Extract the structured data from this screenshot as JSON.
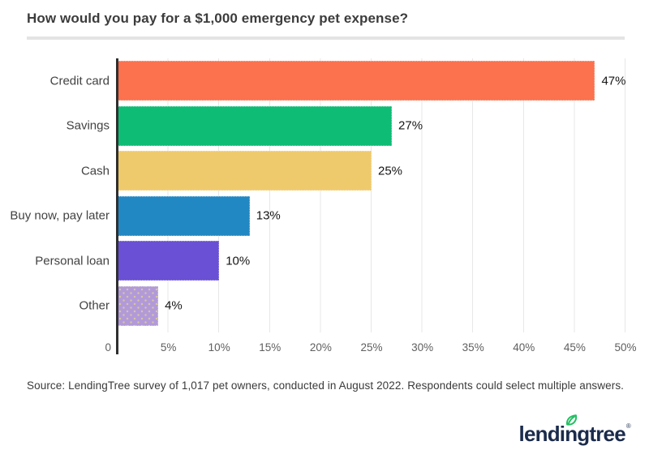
{
  "title": "How would you pay for a $1,000 emergency pet expense?",
  "source_note": "Source: LendingTree survey of 1,017 pet owners, conducted in August 2022. Respondents could select multiple answers.",
  "logo": {
    "text": "lendingtree",
    "registered_mark": "®",
    "text_color": "#1b2b4b",
    "leaf_color": "#21bf61"
  },
  "chart_data": {
    "type": "bar",
    "orientation": "horizontal",
    "title": "How would you pay for a $1,000 emergency pet expense?",
    "categories": [
      "Credit card",
      "Savings",
      "Cash",
      "Buy now, pay later",
      "Personal loan",
      "Other"
    ],
    "values": [
      47,
      27,
      25,
      13,
      10,
      4
    ],
    "value_labels": [
      "47%",
      "27%",
      "25%",
      "13%",
      "10%",
      "4%"
    ],
    "bar_colors": [
      "#fc714e",
      "#0fbc75",
      "#efca6d",
      "#2288c3",
      "#6950d4",
      "#b29ad9"
    ],
    "bar_patterns": [
      "solid",
      "solid",
      "solid",
      "solid",
      "solid",
      "dots"
    ],
    "xlim": [
      0,
      50
    ],
    "x_ticks": [
      "0",
      "5%",
      "10%",
      "15%",
      "20%",
      "25%",
      "30%",
      "35%",
      "40%",
      "45%",
      "50%"
    ],
    "x_tick_values": [
      0,
      5,
      10,
      15,
      20,
      25,
      30,
      35,
      40,
      45,
      50
    ],
    "grid": true,
    "gridline_color": "#e7e7e7",
    "axis_color": "#2f2f2f",
    "legend": "none"
  }
}
